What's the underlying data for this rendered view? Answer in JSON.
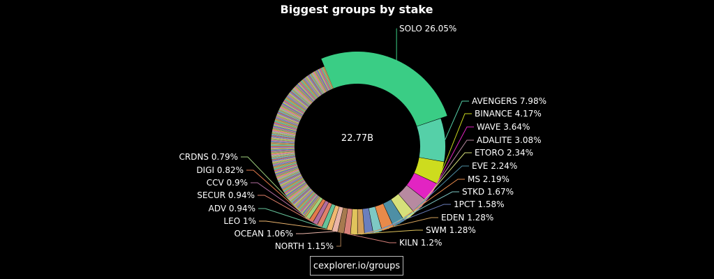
{
  "chart_data": {
    "type": "pie",
    "title": "Biggest groups by stake",
    "center_total": "22.77B",
    "labeled": [
      {
        "name": "SOLO",
        "value": 26.05,
        "label": "SOLO 26.05%",
        "color": "#3acd85"
      },
      {
        "name": "AVENGERS",
        "value": 7.98,
        "label": "AVENGERS 7.98%",
        "color": "#55d0a8"
      },
      {
        "name": "BINANCE",
        "value": 4.17,
        "label": "BINANCE 4.17%",
        "color": "#cddc1e"
      },
      {
        "name": "WAVE",
        "value": 3.64,
        "label": "WAVE 3.64%",
        "color": "#e224c2"
      },
      {
        "name": "ADALITE",
        "value": 3.08,
        "label": "ADALITE 3.08%",
        "color": "#b78aa0"
      },
      {
        "name": "ETORO",
        "value": 2.34,
        "label": "ETORO 2.34%",
        "color": "#d6e07a"
      },
      {
        "name": "EVE",
        "value": 2.24,
        "label": "EVE 2.24%",
        "color": "#4e8fa5"
      },
      {
        "name": "MS",
        "value": 2.19,
        "label": "MS 2.19%",
        "color": "#e88a4a"
      },
      {
        "name": "STKD",
        "value": 1.67,
        "label": "STKD 1.67%",
        "color": "#7ec8c4"
      },
      {
        "name": "1PCT",
        "value": 1.58,
        "label": "1PCT 1.58%",
        "color": "#6b7fbd"
      },
      {
        "name": "EDEN",
        "value": 1.28,
        "label": "EDEN 1.28%",
        "color": "#d3a05a"
      },
      {
        "name": "SWM",
        "value": 1.28,
        "label": "SWM 1.28%",
        "color": "#e0c45c"
      },
      {
        "name": "KILN",
        "value": 1.2,
        "label": "KILN 1.2%",
        "color": "#d9827a"
      },
      {
        "name": "NORTH",
        "value": 1.15,
        "label": "NORTH 1.15%",
        "color": "#a77a4f"
      },
      {
        "name": "OCEAN",
        "value": 1.06,
        "label": "OCEAN 1.06%",
        "color": "#eab5a8"
      },
      {
        "name": "LEO",
        "value": 1.0,
        "label": "LEO 1%",
        "color": "#f0b870"
      },
      {
        "name": "ADV",
        "value": 0.94,
        "label": "ADV 0.94%",
        "color": "#66c29a"
      },
      {
        "name": "SECUR",
        "value": 0.94,
        "label": "SECUR 0.94%",
        "color": "#e0806a"
      },
      {
        "name": "CCV",
        "value": 0.9,
        "label": "CCV 0.9%",
        "color": "#b06d9e"
      },
      {
        "name": "DIGI",
        "value": 0.82,
        "label": "DIGI 0.82%",
        "color": "#e27a4c"
      },
      {
        "name": "CRDNS",
        "value": 0.79,
        "label": "CRDNS 0.79%",
        "color": "#9fd07e"
      }
    ],
    "others_total_percent": 33.72,
    "others_palette": [
      "#e6a35b",
      "#7fb07a",
      "#c77a9a",
      "#5d8ebf",
      "#d8c45a",
      "#9a7ad0",
      "#e07d5e",
      "#5fbfa8",
      "#b0b36a",
      "#c48a5a",
      "#6a9fc8",
      "#d07aa8",
      "#8fc46a",
      "#e0b07a",
      "#7a8fd0",
      "#c06a6a",
      "#6ac0c0",
      "#b89a6a",
      "#a0d08a",
      "#d08ac0"
    ]
  },
  "source_label": "cexplorer.io/groups"
}
